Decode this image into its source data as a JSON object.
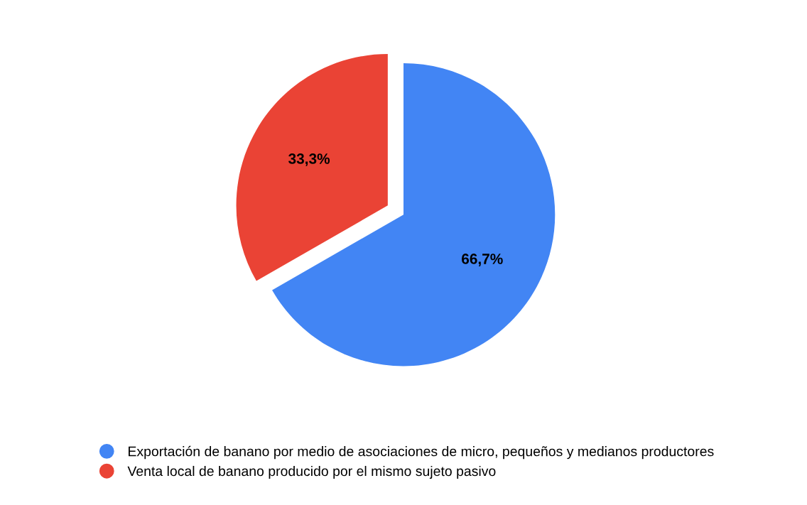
{
  "chart_data": {
    "type": "pie",
    "categories": [
      "Exportación de banano por medio de asociaciones de micro, pequeños y medianos productores",
      "Venta local de banano producido por el mismo sujeto pasivo"
    ],
    "values": [
      66.7,
      33.3
    ],
    "colors": [
      "#4285f4",
      "#ea4335"
    ],
    "value_labels": [
      "66,7%",
      "33,3%"
    ],
    "legend": "bottom"
  }
}
